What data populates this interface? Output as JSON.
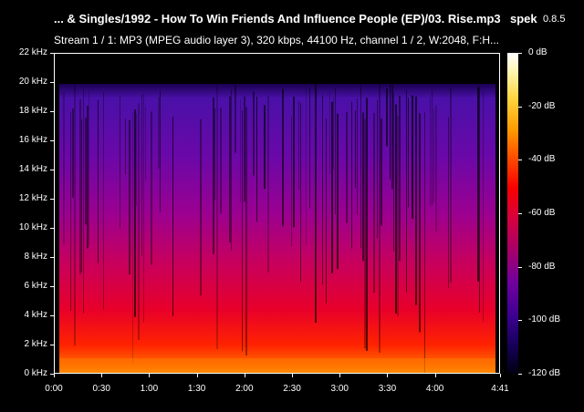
{
  "window": {
    "title": "... & Singles/1992 - How To Win Friends And Influence People (EP)/03. Rise.mp3",
    "app_name": "spek",
    "app_version": "0.8.5"
  },
  "stream_info": "Stream 1 / 1: MP3 (MPEG audio layer 3), 320 kbps, 44100 Hz, channel 1 / 2, W:2048, F:H...",
  "spectrogram": {
    "frequency_axis": {
      "unit": "kHz",
      "range": [
        0,
        22
      ],
      "ticks": [
        "22 kHz",
        "20 kHz",
        "18 kHz",
        "16 kHz",
        "14 kHz",
        "12 kHz",
        "10 kHz",
        "8 kHz",
        "6 kHz",
        "4 kHz",
        "2 kHz",
        "0 kHz"
      ]
    },
    "time_axis": {
      "range_seconds": [
        0,
        281
      ],
      "ticks": [
        "0:00",
        "0:30",
        "1:00",
        "1:30",
        "2:00",
        "2:30",
        "3:00",
        "3:30",
        "4:00",
        "4:41"
      ]
    },
    "lowpass_cutoff_khz": 20,
    "colors": {
      "background": "#000000",
      "low": "#3c0090",
      "mid": "#c8003c",
      "high": "#ff8800"
    }
  },
  "colorbar": {
    "unit": "dB",
    "range": [
      -120,
      0
    ],
    "ticks": [
      "0 dB",
      "-20 dB",
      "-40 dB",
      "-60 dB",
      "-80 dB",
      "-100 dB",
      "-120 dB"
    ]
  }
}
